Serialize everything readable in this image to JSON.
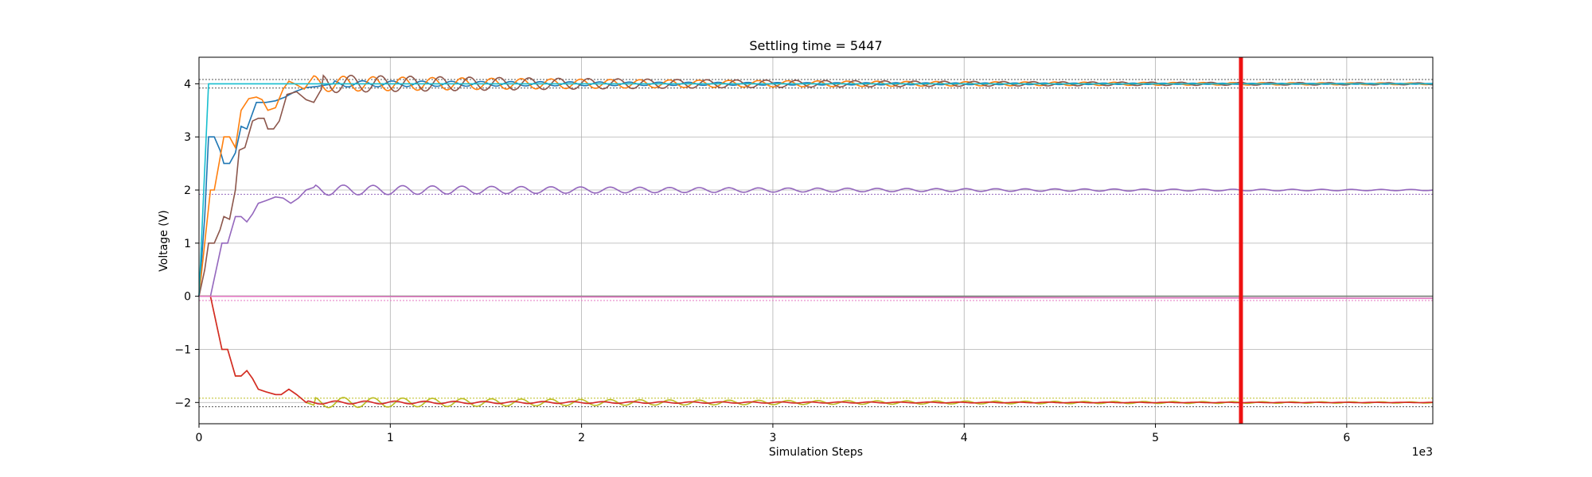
{
  "chart_data": {
    "type": "line",
    "title": "Settling time = 5447",
    "xlabel": "Simulation Steps",
    "ylabel": "Voltage (V)",
    "x_scale_label": "1e3",
    "xlim": [
      0,
      6450
    ],
    "ylim": [
      -2.4,
      4.5
    ],
    "x_ticks": [
      0,
      1000,
      2000,
      3000,
      4000,
      5000,
      6000
    ],
    "x_tick_labels": [
      "0",
      "1",
      "2",
      "3",
      "4",
      "5",
      "6"
    ],
    "y_ticks": [
      -2,
      -1,
      0,
      1,
      2,
      3,
      4
    ],
    "y_tick_labels": [
      "−2",
      "−1",
      "0",
      "1",
      "2",
      "3",
      "4"
    ],
    "grid": true,
    "settling_time": 5447,
    "settling_line_color": "#ee1111",
    "tolerance_lines": [
      {
        "y": 4.08,
        "color": "#555555"
      },
      {
        "y": 3.92,
        "color": "#555555"
      },
      {
        "y": 1.92,
        "color": "#9467bd"
      },
      {
        "y": -0.08,
        "color": "#e377c2"
      },
      {
        "y": -1.92,
        "color": "#bcbd22"
      },
      {
        "y": -2.08,
        "color": "#555555"
      }
    ],
    "series": [
      {
        "color": "#1f77b4",
        "target": 4,
        "amp": 0.06,
        "points": [
          [
            0,
            0
          ],
          [
            30,
            1.5
          ],
          [
            50,
            3.0
          ],
          [
            80,
            3.0
          ],
          [
            110,
            2.75
          ],
          [
            130,
            2.5
          ],
          [
            160,
            2.5
          ],
          [
            190,
            2.7
          ],
          [
            220,
            3.2
          ],
          [
            250,
            3.15
          ],
          [
            300,
            3.65
          ],
          [
            350,
            3.65
          ],
          [
            400,
            3.68
          ],
          [
            450,
            3.75
          ],
          [
            500,
            3.85
          ],
          [
            560,
            3.93
          ],
          [
            620,
            3.95
          ],
          [
            700,
            4.0
          ]
        ]
      },
      {
        "color": "#ff7f0e",
        "target": 4,
        "amp": 0.15,
        "points": [
          [
            0,
            0
          ],
          [
            30,
            1.0
          ],
          [
            60,
            2.0
          ],
          [
            80,
            2.0
          ],
          [
            110,
            2.6
          ],
          [
            130,
            3.0
          ],
          [
            160,
            3.0
          ],
          [
            190,
            2.8
          ],
          [
            220,
            3.5
          ],
          [
            260,
            3.72
          ],
          [
            300,
            3.75
          ],
          [
            330,
            3.7
          ],
          [
            360,
            3.5
          ],
          [
            400,
            3.55
          ],
          [
            440,
            3.9
          ],
          [
            470,
            4.05
          ],
          [
            500,
            4.0
          ],
          [
            550,
            3.9
          ],
          [
            600,
            4.15
          ]
        ]
      },
      {
        "color": "#8c564b",
        "target": 4,
        "amp": 0.17,
        "points": [
          [
            0,
            0
          ],
          [
            30,
            0.5
          ],
          [
            50,
            1.0
          ],
          [
            80,
            1.0
          ],
          [
            110,
            1.25
          ],
          [
            130,
            1.5
          ],
          [
            160,
            1.45
          ],
          [
            190,
            2.0
          ],
          [
            210,
            2.75
          ],
          [
            240,
            2.8
          ],
          [
            280,
            3.3
          ],
          [
            310,
            3.35
          ],
          [
            340,
            3.35
          ],
          [
            360,
            3.15
          ],
          [
            390,
            3.15
          ],
          [
            420,
            3.3
          ],
          [
            460,
            3.8
          ],
          [
            510,
            3.85
          ],
          [
            560,
            3.7
          ],
          [
            600,
            3.65
          ],
          [
            640,
            3.9
          ]
        ]
      },
      {
        "color": "#17becf",
        "target": 4,
        "amp": 0.0,
        "points": [
          [
            0,
            0
          ],
          [
            25,
            2.0
          ],
          [
            50,
            4.0
          ],
          [
            700,
            4.0
          ]
        ]
      },
      {
        "color": "#9467bd",
        "target": 2,
        "amp": 0.1,
        "points": [
          [
            0,
            0
          ],
          [
            60,
            0
          ],
          [
            90,
            0.5
          ],
          [
            120,
            1.0
          ],
          [
            150,
            1.0
          ],
          [
            190,
            1.5
          ],
          [
            220,
            1.5
          ],
          [
            250,
            1.4
          ],
          [
            280,
            1.55
          ],
          [
            310,
            1.75
          ],
          [
            350,
            1.8
          ],
          [
            400,
            1.87
          ],
          [
            440,
            1.85
          ],
          [
            480,
            1.75
          ],
          [
            520,
            1.85
          ],
          [
            560,
            2.0
          ],
          [
            600,
            2.05
          ]
        ]
      },
      {
        "color": "#bcbd22",
        "target": -2,
        "amp": 0.1,
        "points": [
          [
            0,
            0
          ],
          [
            60,
            0
          ],
          [
            90,
            -0.5
          ],
          [
            120,
            -1.0
          ],
          [
            150,
            -1.0
          ],
          [
            190,
            -1.5
          ],
          [
            220,
            -1.5
          ],
          [
            250,
            -1.4
          ],
          [
            280,
            -1.55
          ],
          [
            310,
            -1.75
          ],
          [
            350,
            -1.8
          ],
          [
            400,
            -1.85
          ],
          [
            430,
            -1.85
          ],
          [
            470,
            -1.75
          ],
          [
            510,
            -1.85
          ],
          [
            560,
            -2.0
          ],
          [
            600,
            -2.05
          ]
        ]
      },
      {
        "color": "#d62728",
        "target": -2,
        "amp": 0.03,
        "points": [
          [
            0,
            0
          ],
          [
            60,
            0
          ],
          [
            90,
            -0.5
          ],
          [
            120,
            -1.0
          ],
          [
            150,
            -1.0
          ],
          [
            190,
            -1.5
          ],
          [
            220,
            -1.5
          ],
          [
            250,
            -1.4
          ],
          [
            280,
            -1.55
          ],
          [
            310,
            -1.75
          ],
          [
            350,
            -1.8
          ],
          [
            400,
            -1.85
          ],
          [
            430,
            -1.85
          ],
          [
            470,
            -1.75
          ],
          [
            510,
            -1.85
          ],
          [
            560,
            -2.0
          ]
        ]
      },
      {
        "color": "#2ca02c",
        "target": 0,
        "amp": 0.0,
        "points": [
          [
            0,
            0
          ],
          [
            6450,
            0
          ]
        ]
      },
      {
        "color": "#7f7f7f",
        "target": 0,
        "amp": 0.0,
        "points": [
          [
            0,
            0
          ],
          [
            6450,
            0
          ]
        ]
      },
      {
        "color": "#e377c2",
        "target": 0,
        "amp": 0.0,
        "points": [
          [
            0,
            0
          ],
          [
            6450,
            -0.04
          ]
        ]
      }
    ]
  }
}
